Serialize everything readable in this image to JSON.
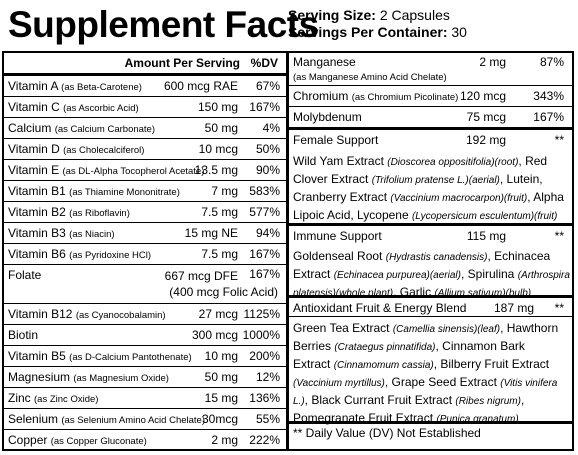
{
  "header": {
    "title": "Supplement Facts",
    "serving_size_label": "Serving Size:",
    "serving_size_value": "2 Capsules",
    "servings_label": "Servings Per Container:",
    "servings_value": "30"
  },
  "table_head": {
    "amount": "Amount Per Serving",
    "dv": "%DV"
  },
  "left_rows": [
    {
      "name": "Vitamin A",
      "source": "(as Beta-Carotene)",
      "amount": "600 mcg RAE",
      "dv": "67%"
    },
    {
      "name": "Vitamin C",
      "source": "(as Ascorbic Acid)",
      "amount": "150 mg",
      "dv": "167%"
    },
    {
      "name": "Calcium",
      "source": "(as Calcium Carbonate)",
      "amount": "50 mg",
      "dv": "4%"
    },
    {
      "name": "Vitamin D",
      "source": "(as Cholecalciferol)",
      "amount": "10 mcg",
      "dv": "50%"
    },
    {
      "name": "Vitamin E",
      "source": "(as DL-Alpha Tocopherol Acetate)",
      "amount": "13.5 mg",
      "dv": "90%"
    },
    {
      "name": "Vitamin B1",
      "source": "(as Thiamine Mononitrate)",
      "amount": "7 mg",
      "dv": "583%"
    },
    {
      "name": "Vitamin B2",
      "source": "(as Riboflavin)",
      "amount": "7.5 mg",
      "dv": "577%"
    },
    {
      "name": "Vitamin B3",
      "source": "(as Niacin)",
      "amount": "15 mg NE",
      "dv": "94%"
    },
    {
      "name": "Vitamin B6",
      "source": "(as Pyridoxine HCl)",
      "amount": "7.5 mg",
      "dv": "167%"
    },
    {
      "name": "Folate",
      "source": "",
      "amount": "667 mcg DFE",
      "amount2": "(400 mcg Folic Acid)",
      "dv": "167%"
    },
    {
      "name": "Vitamin B12",
      "source": "(as Cyanocobalamin)",
      "amount": "27 mcg",
      "dv": "1125%"
    },
    {
      "name": "Biotin",
      "source": "",
      "amount": "300 mcg",
      "dv": "1000%"
    },
    {
      "name": "Vitamin B5",
      "source": "(as D-Calcium Pantothenate)",
      "amount": "10 mg",
      "dv": "200%"
    },
    {
      "name": "Magnesium",
      "source": "(as Magnesium Oxide)",
      "amount": "50 mg",
      "dv": "12%"
    },
    {
      "name": "Zinc",
      "source": "(as Zinc Oxide)",
      "amount": "15 mg",
      "dv": "136%"
    },
    {
      "name": "Selenium",
      "source": "(as Selenium Amino Acid Chelate)",
      "amount": "30mcg",
      "dv": "55%"
    },
    {
      "name": "Copper",
      "source": "(as Copper Gluconate)",
      "amount": "2 mg",
      "dv": "222%"
    }
  ],
  "right": {
    "manganese": {
      "name": "Manganese",
      "source": "(as Manganese Amino Acid Chelate)",
      "amount": "2 mg",
      "dv": "87%"
    },
    "chromium": {
      "name": "Chromium",
      "source": "(as Chromium Picolinate)",
      "amount": "120 mcg",
      "dv": "343%"
    },
    "molybdenum": {
      "name": "Molybdenum",
      "amount": "75 mcg",
      "dv": "167%"
    },
    "female": {
      "name": "Female Support",
      "amount": "192 mg",
      "dv": "**",
      "l1a": "Wild Yam Extract ",
      "l1b": "(Dioscorea oppositifolia)(root)",
      "l1c": ", Red",
      "l2a": "Clover Extract ",
      "l2b": "(Trifolium pratense L.)(aerial)",
      "l2c": ", Lutein,",
      "l3a": "Cranberry Extract ",
      "l3b": "(Vaccinium macrocarpon)(fruit)",
      "l3c": ", Alpha",
      "l4a": "Lipoic Acid, Lycopene ",
      "l4b": "(Lycopersicum esculentum)(fruit)"
    },
    "immune": {
      "name": "Immune Support",
      "amount": "115 mg",
      "dv": "**",
      "l1a": "Goldenseal Root ",
      "l1b": "(Hydrastis canadensis)",
      "l1c": ", Echinacea",
      "l2a": "Extract ",
      "l2b": "(Echinacea purpurea)(aerial)",
      "l2c": ", Spirulina ",
      "l2d": "(Arthrospira",
      "l3a": "platensis)(whole plant)",
      "l3b": ", Garlic ",
      "l3c": "(Allium sativum)(bulb)"
    },
    "antioxidant": {
      "name": "Antioxidant Fruit & Energy Blend",
      "amount": "187 mg",
      "dv": "**",
      "l1a": "Green Tea Extract ",
      "l1b": "(Camellia sinensis)(leaf)",
      "l1c": ", Hawthorn",
      "l2a": "Berries ",
      "l2b": "(Crataegus pinnatifida)",
      "l2c": ", Cinnamon Bark",
      "l3a": "Extract ",
      "l3b": "(Cinnamomum cassia)",
      "l3c": ", Bilberry Fruit Extract",
      "l4a": "(Vaccinium myrtillus)",
      "l4b": ", Grape Seed Extract ",
      "l4c": "(Vitis vinifera",
      "l5a": "L.)",
      "l5b": ", Black Currant Fruit Extract ",
      "l5c": "(Ribes nigrum)",
      ",": "",
      "l6a": "Pomegranate Fruit Extract ",
      "l6b": "(Punica granatum)"
    },
    "footnote": "** Daily Value (DV) Not Established"
  }
}
